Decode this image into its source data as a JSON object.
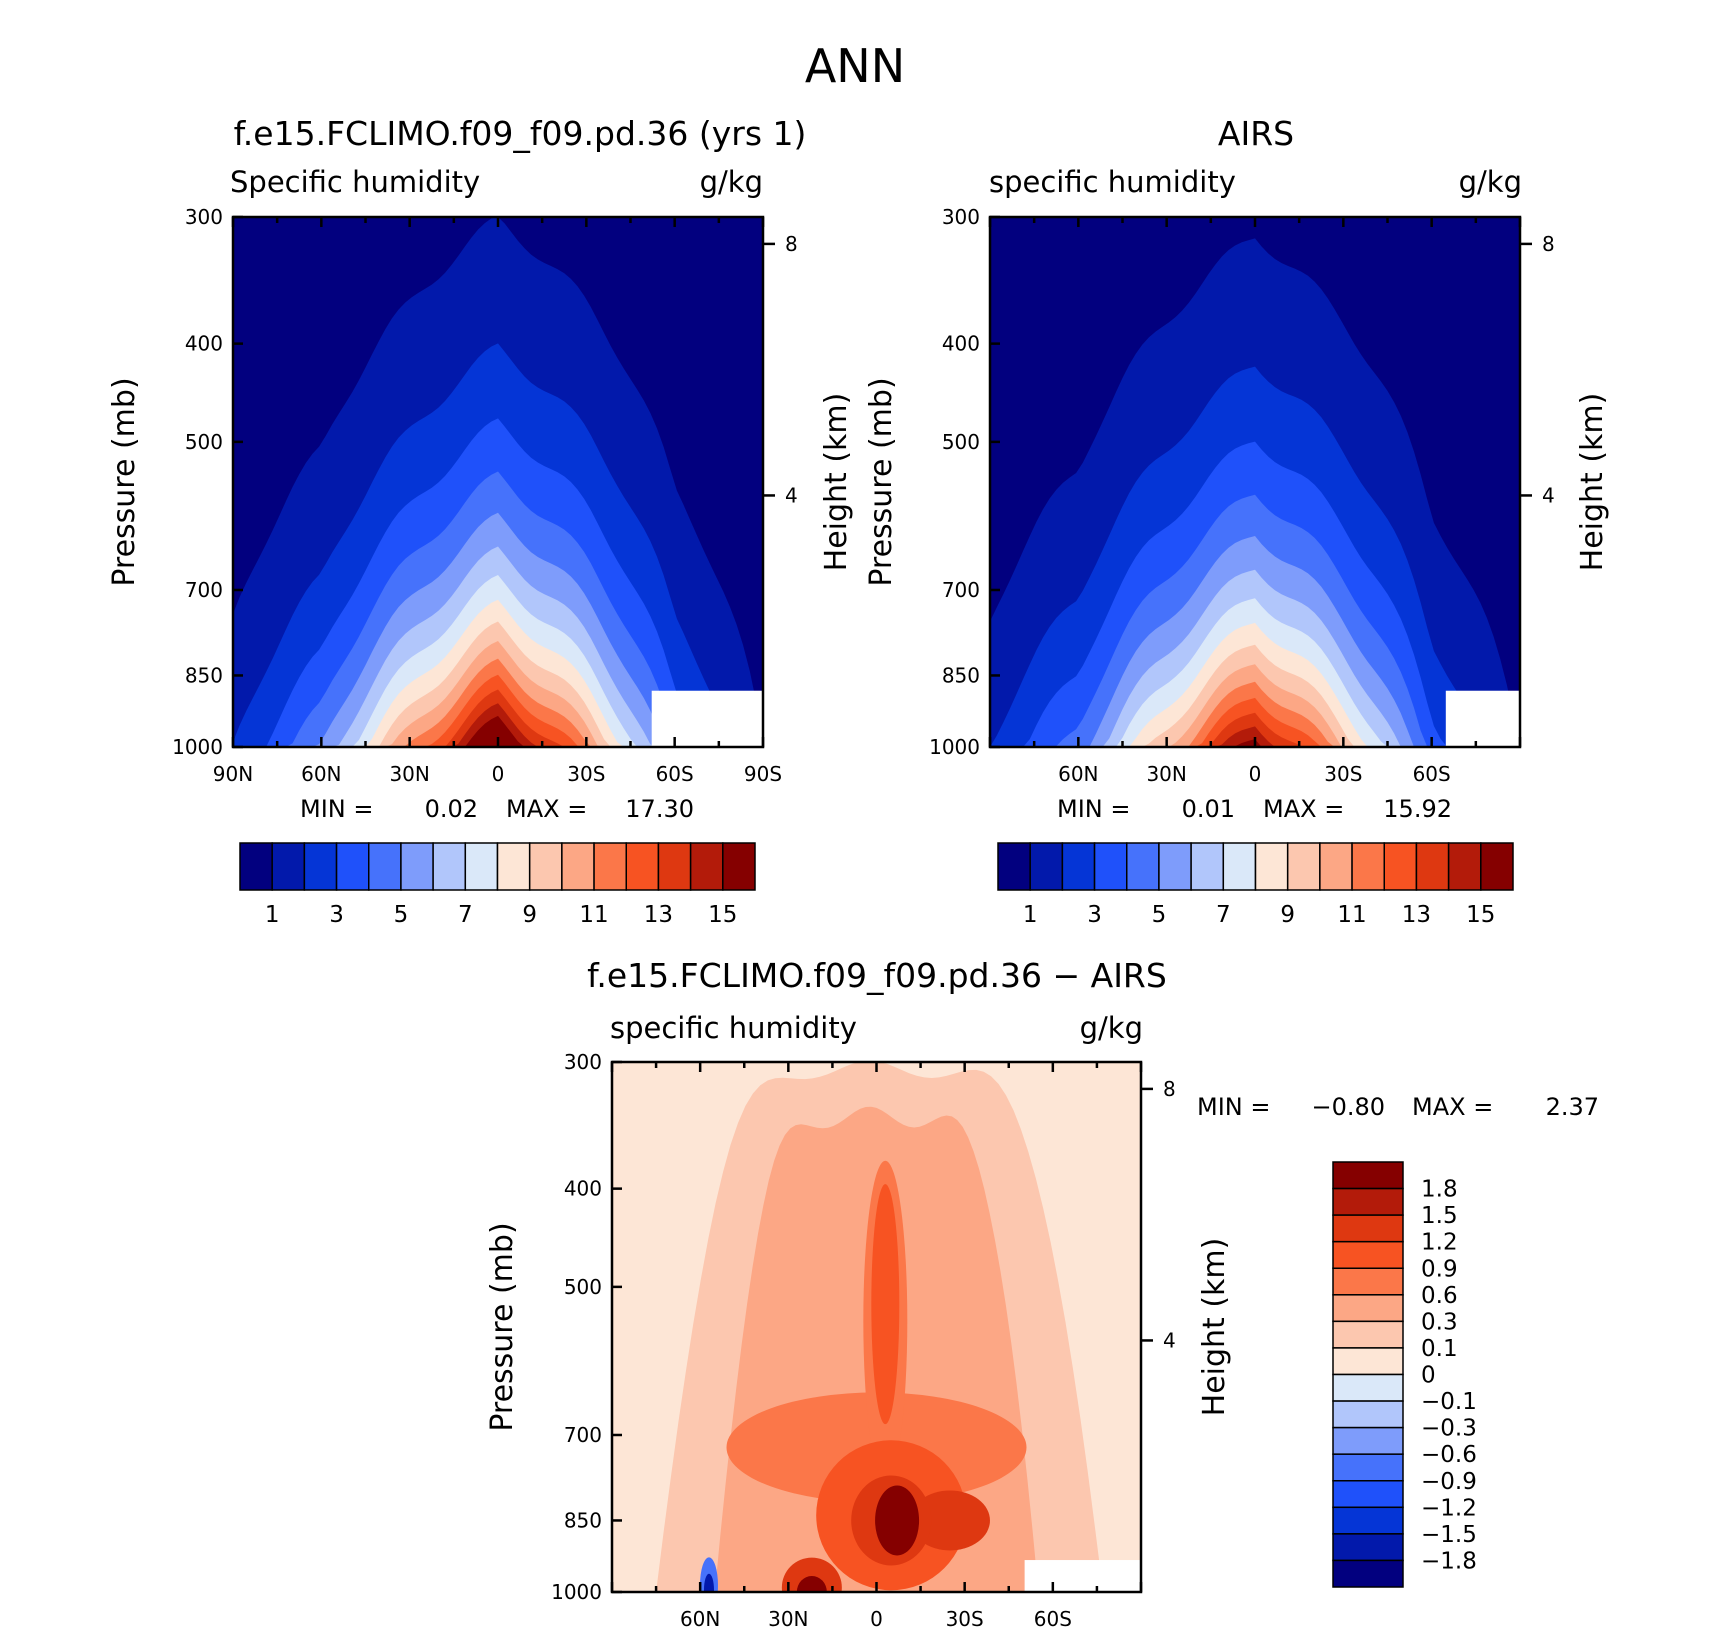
{
  "figure": {
    "title": "ANN"
  },
  "labels": {
    "min": "MIN =",
    "max": "MAX =",
    "left_axis": "Pressure (mb)",
    "right_axis": "Height (km)"
  },
  "colors": {
    "abs_scale": [
      "#02007f",
      "#0219ab",
      "#0535d6",
      "#1f51fa",
      "#4672fb",
      "#7e9cfb",
      "#b1c6fb",
      "#dae8f9",
      "#fde6d6",
      "#fcc7af",
      "#fca785",
      "#fb7749",
      "#f75322",
      "#de3811",
      "#b31b0a",
      "#850000"
    ],
    "diff_scale": [
      "#02007f",
      "#0219ab",
      "#0535d6",
      "#1f51fa",
      "#4672fb",
      "#7e9cfb",
      "#b1c6fb",
      "#dae8f9",
      "#fde6d6",
      "#fcc7af",
      "#fca785",
      "#fb7749",
      "#f75322",
      "#de3811",
      "#b31b0a",
      "#850000"
    ]
  },
  "chart_data": [
    {
      "type": "heatmap",
      "title": "f.e15.FCLIMO.f09_f09.pd.36 (yrs 1)",
      "variable": "Specific humidity",
      "units": "g/kg",
      "ylabel": "Pressure (mb)",
      "ylabel_right": "Height (km)",
      "x_ticks": [
        "90N",
        "60N",
        "30N",
        "0",
        "30S",
        "60S",
        "90S"
      ],
      "y_ticks": [
        "300",
        "400",
        "500",
        "700",
        "850",
        "1000"
      ],
      "y_ticks_right": [
        "8",
        "4"
      ],
      "ylim": [
        1000,
        300
      ],
      "min_value": "0.02",
      "max_value": "17.30",
      "colorbar_labels": [
        "1",
        "3",
        "5",
        "7",
        "9",
        "11",
        "13",
        "15"
      ],
      "levels": [
        1,
        2,
        3,
        4,
        5,
        6,
        7,
        8,
        9,
        10,
        11,
        12,
        13,
        14,
        15
      ],
      "profile": {
        "lat": [
          90,
          60,
          30,
          0,
          -30,
          -60,
          -90
        ],
        "surface_peak": [
          2,
          5,
          11,
          17.3,
          11,
          4,
          1
        ]
      }
    },
    {
      "type": "heatmap",
      "title": "AIRS",
      "variable": "specific humidity",
      "units": "g/kg",
      "ylabel": "Pressure (mb)",
      "ylabel_right": "Height (km)",
      "x_ticks": [
        "60N",
        "30N",
        "0",
        "30S",
        "60S"
      ],
      "y_ticks": [
        "300",
        "400",
        "500",
        "700",
        "850",
        "1000"
      ],
      "y_ticks_right": [
        "8",
        "4"
      ],
      "ylim": [
        1000,
        300
      ],
      "min_value": "0.01",
      "max_value": "15.92",
      "colorbar_labels": [
        "1",
        "3",
        "5",
        "7",
        "9",
        "11",
        "13",
        "15"
      ],
      "levels": [
        1,
        2,
        3,
        4,
        5,
        6,
        7,
        8,
        9,
        10,
        11,
        12,
        13,
        14,
        15
      ],
      "profile": {
        "lat": [
          90,
          60,
          30,
          0,
          -30,
          -60,
          -90
        ],
        "surface_peak": [
          2,
          4.5,
          10,
          15.9,
          10,
          3.5,
          1
        ]
      }
    },
    {
      "type": "heatmap",
      "title": "f.e15.FCLIMO.f09_f09.pd.36 − AIRS",
      "variable": "specific humidity",
      "units": "g/kg",
      "ylabel": "Pressure (mb)",
      "ylabel_right": "Height (km)",
      "x_ticks": [
        "60N",
        "30N",
        "0",
        "30S",
        "60S"
      ],
      "y_ticks": [
        "300",
        "400",
        "500",
        "700",
        "850",
        "1000"
      ],
      "y_ticks_right": [
        "8",
        "4"
      ],
      "ylim": [
        1000,
        300
      ],
      "min_value": "−0.80",
      "max_value": "2.37",
      "colorbar_labels": [
        "1.8",
        "1.5",
        "1.2",
        "0.9",
        "0.6",
        "0.3",
        "0.1",
        "0",
        "−0.1",
        "−0.3",
        "−0.6",
        "−0.9",
        "−1.2",
        "−1.5",
        "−1.8"
      ],
      "levels": [
        -1.8,
        -1.5,
        -1.2,
        -0.9,
        -0.6,
        -0.3,
        -0.1,
        0,
        0.1,
        0.3,
        0.6,
        0.9,
        1.2,
        1.5,
        1.8
      ]
    }
  ]
}
